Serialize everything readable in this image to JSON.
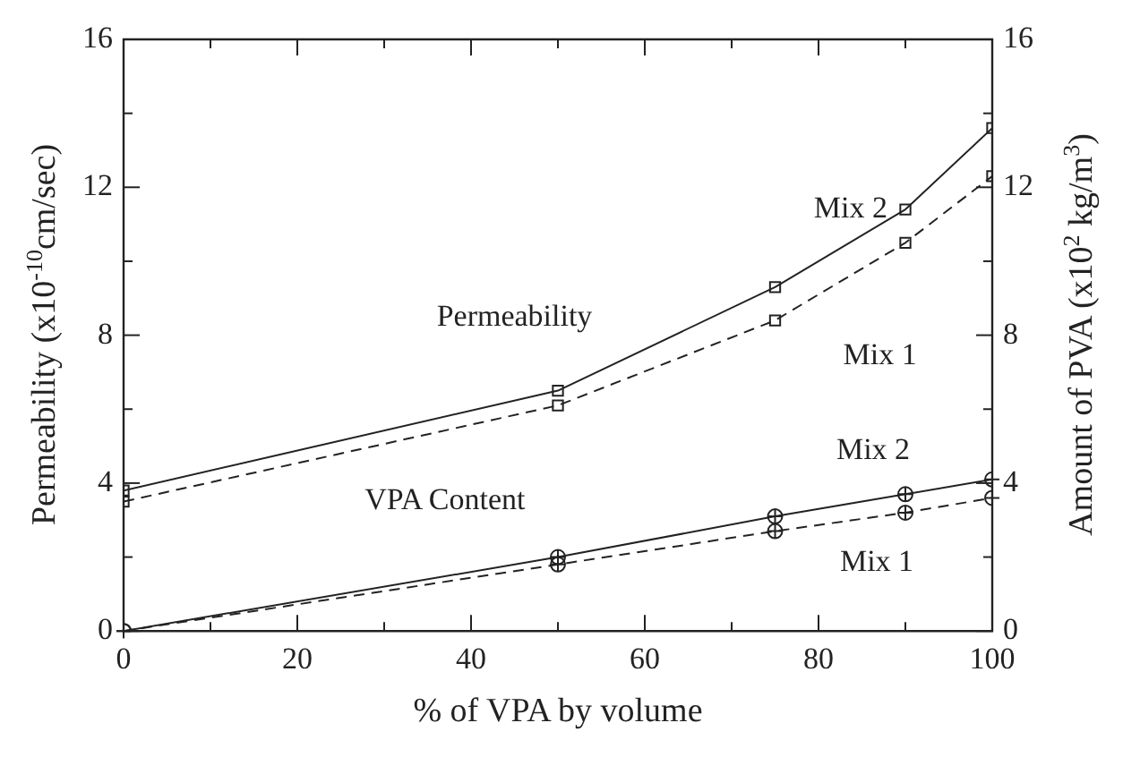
{
  "chart_data": {
    "type": "line",
    "xlabel": "% of VPA by volume",
    "ylabel": "Permeability (x10$^{-10}$cm/sec)",
    "y2label": "Amount of PVA (x10$^{2}$ kg/m$^{3}$)",
    "x": [
      0,
      50,
      75,
      90,
      100
    ],
    "xlim": [
      0,
      100
    ],
    "xticks": [
      0,
      {
        "value": 10,
        "label": null
      },
      20,
      {
        "value": 30,
        "label": null
      },
      40,
      {
        "value": 50,
        "label": null
      },
      60,
      {
        "value": 70,
        "label": null
      },
      80,
      {
        "value": 90,
        "label": null
      },
      100
    ],
    "ylim": [
      0,
      16
    ],
    "yticks": [
      0,
      {
        "value": 2,
        "label": null
      },
      4,
      {
        "value": 6,
        "label": null
      },
      8,
      {
        "value": 10,
        "label": null
      },
      12,
      {
        "value": 14,
        "label": null
      },
      16
    ],
    "y2lim": [
      0,
      16
    ],
    "y2ticks": [
      0,
      {
        "value": 2,
        "label": null
      },
      4,
      {
        "value": 6,
        "label": null
      },
      8,
      {
        "value": 10,
        "label": null
      },
      12,
      {
        "value": 14,
        "label": null
      },
      16
    ],
    "series": [
      {
        "name": "Mix 2",
        "color": "#222222",
        "values": [
          3.8,
          6.5,
          9.3,
          11.4,
          13.6
        ],
        "marker": "square",
        "line_style": "solid"
      },
      {
        "name": "Mix 1",
        "color": "#222222",
        "values": [
          3.5,
          6.1,
          8.4,
          10.5,
          12.3
        ],
        "marker": "square",
        "line_style": "dashed"
      },
      {
        "name": "Mix 2",
        "color": "#222222",
        "values": [
          0,
          2.0,
          3.1,
          3.7,
          4.1
        ],
        "marker": "circle",
        "line_style": "solid"
      },
      {
        "name": "Mix 1",
        "color": "#222222",
        "values": [
          0,
          1.8,
          2.7,
          3.2,
          3.6
        ],
        "marker": "circle",
        "line_style": "dashed"
      }
    ],
    "annotations": [
      "Permeability",
      "VPA Content"
    ],
    "grid": false,
    "legend": false
  }
}
